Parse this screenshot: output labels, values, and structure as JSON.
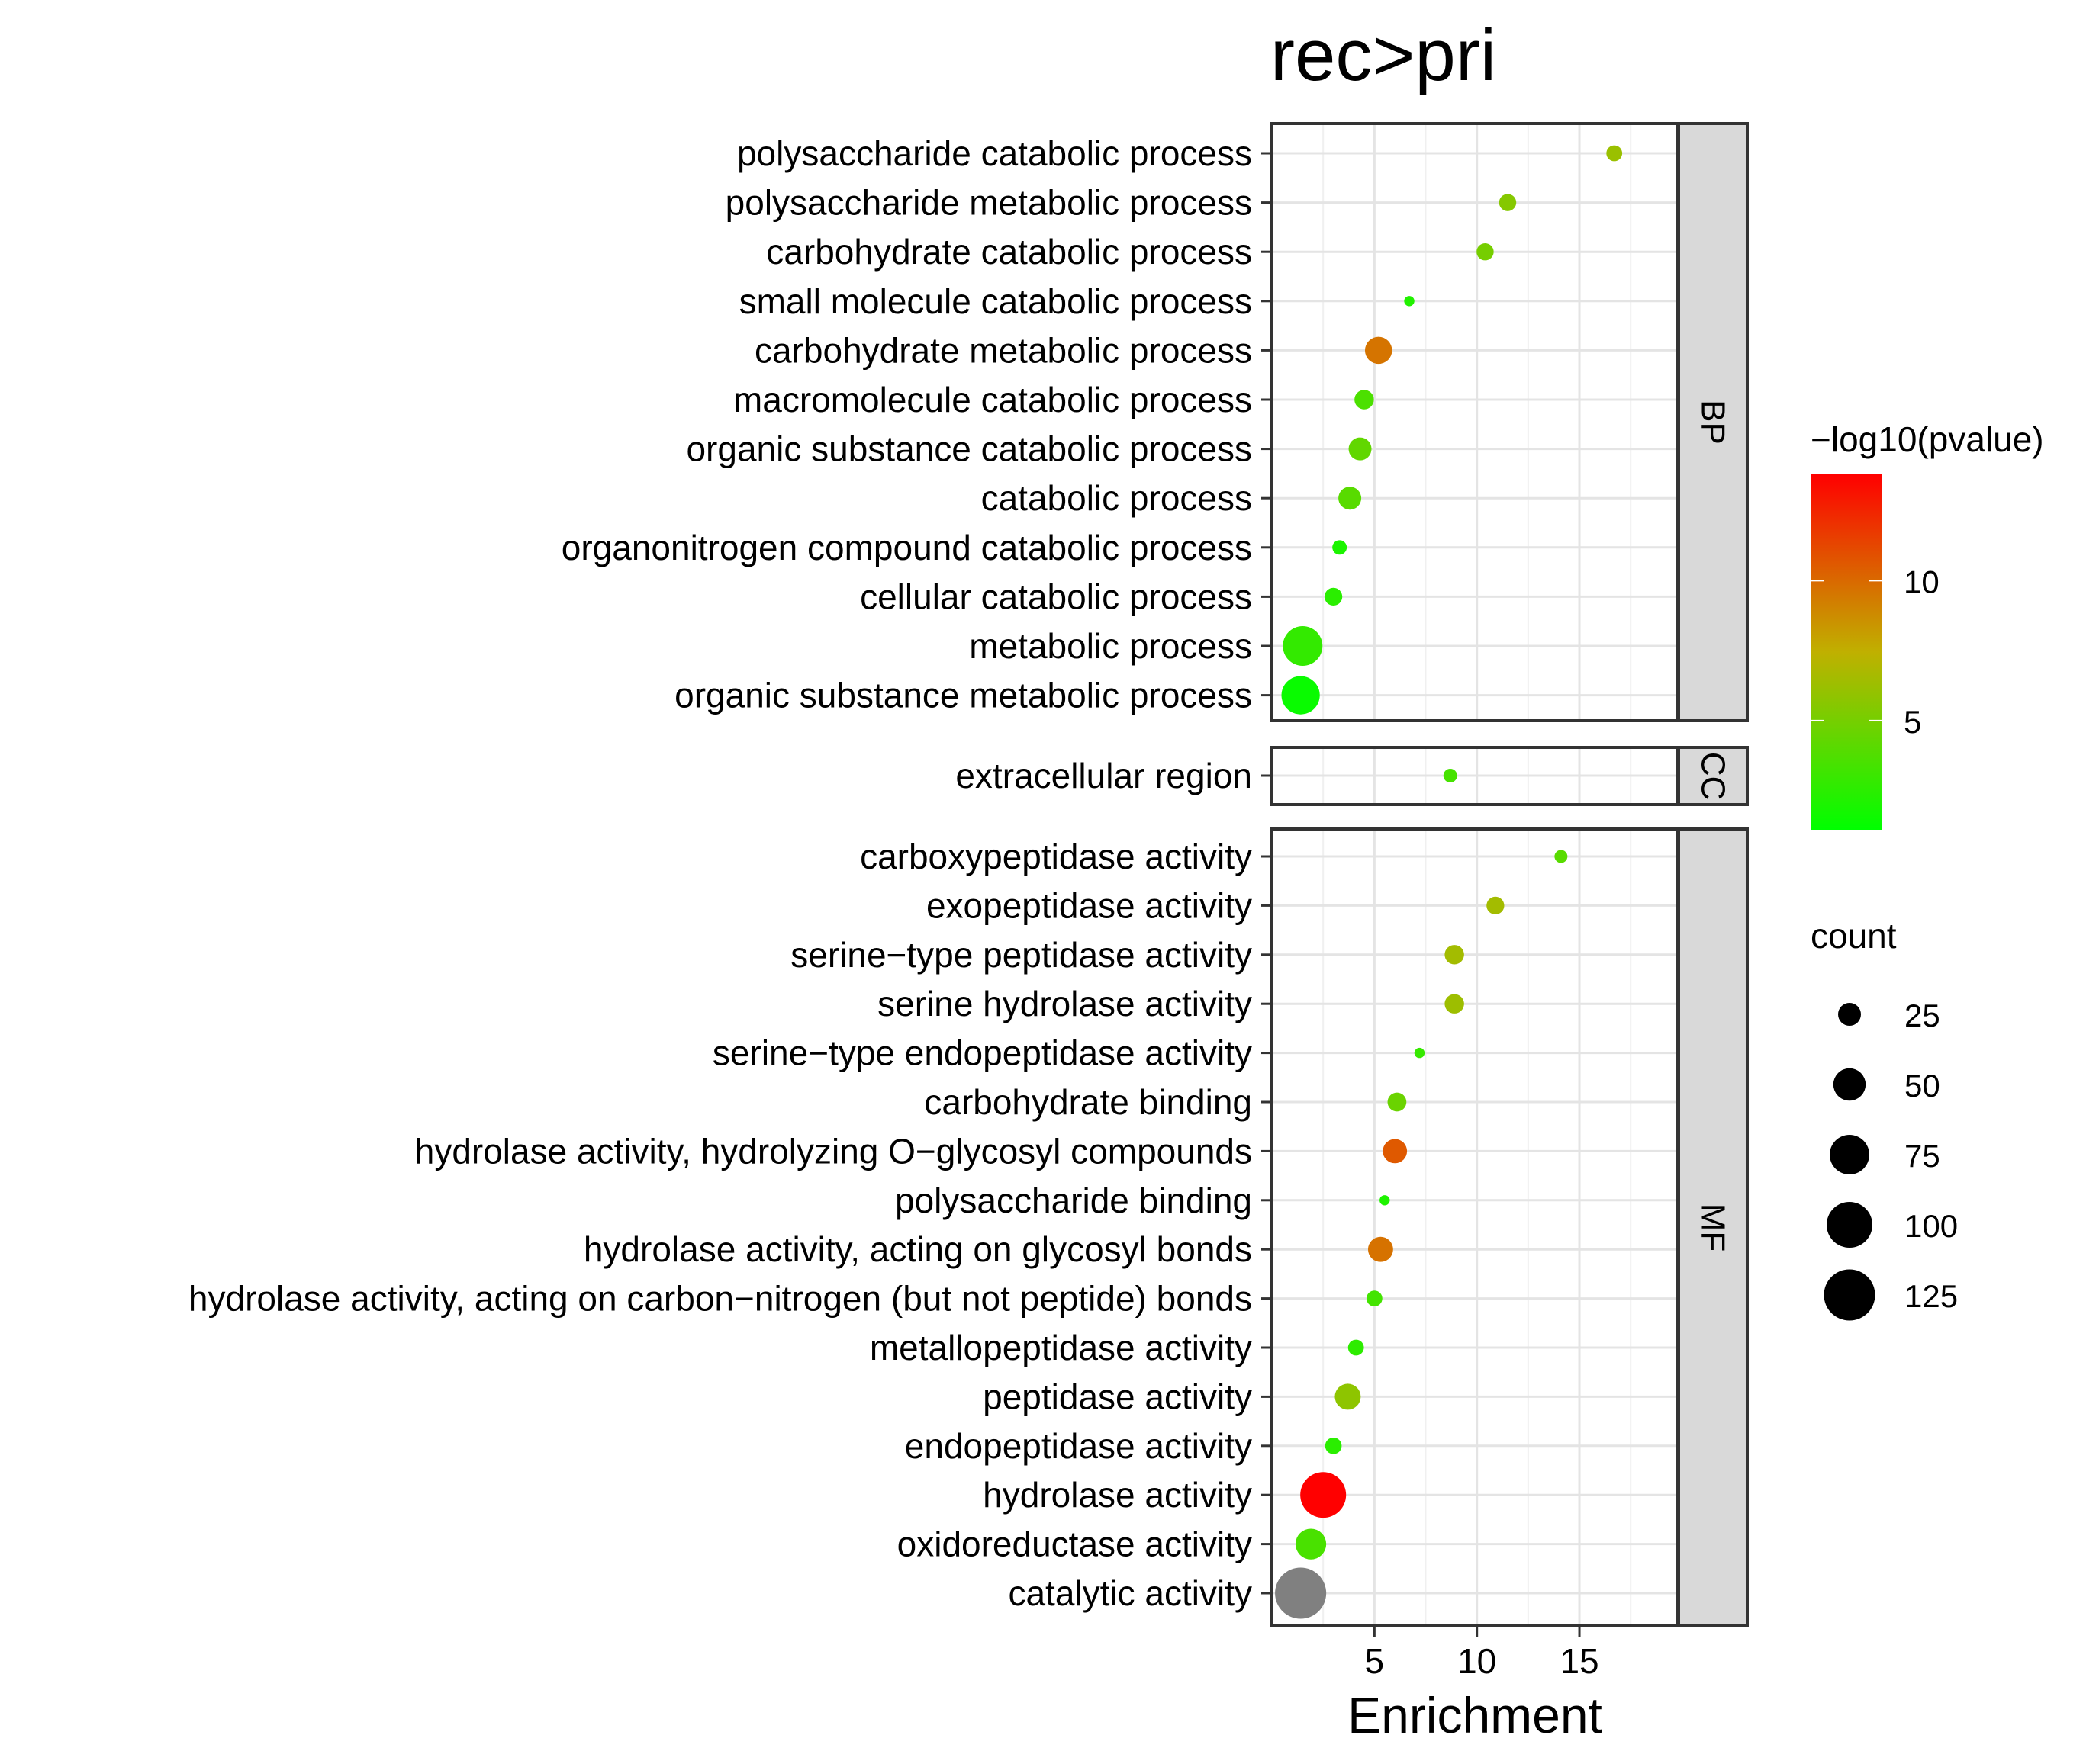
{
  "chart_data": {
    "type": "scatter",
    "title": "rec>pri",
    "xlabel": "Enrichment",
    "ylabel": "",
    "xlim": [
      0,
      19.8
    ],
    "xticks": [
      "5",
      "10",
      "15"
    ],
    "x_tick_values": [
      5,
      10,
      15
    ],
    "grid": true,
    "color_legend": {
      "title": "−log10(pvalue)",
      "ticks": [
        "5",
        "10"
      ],
      "tick_values": [
        5,
        10
      ],
      "range": [
        1.1,
        13.8
      ],
      "low_color": "#00ff00",
      "mid_color": "#c0b000",
      "high_color": "#ff0000",
      "na_color": "#808080",
      "position": "right"
    },
    "size_legend": {
      "title": "count",
      "values": [
        25,
        50,
        75,
        100,
        125
      ],
      "labels": [
        "25",
        "50",
        "75",
        "100",
        "125"
      ],
      "position": "right"
    },
    "facets": [
      {
        "label": "BP",
        "points": [
          {
            "term": "polysaccharide catabolic process",
            "enrichment": 16.7,
            "neglog10p": 6.2,
            "count": 12
          },
          {
            "term": "polysaccharide metabolic process",
            "enrichment": 11.5,
            "neglog10p": 5.5,
            "count": 14
          },
          {
            "term": "carbohydrate catabolic process",
            "enrichment": 10.4,
            "neglog10p": 5.0,
            "count": 14
          },
          {
            "term": "small molecule catabolic process",
            "enrichment": 6.7,
            "neglog10p": 2.2,
            "count": 5
          },
          {
            "term": "carbohydrate metabolic process",
            "enrichment": 5.2,
            "neglog10p": 9.6,
            "count": 35
          },
          {
            "term": "macromolecule catabolic process",
            "enrichment": 4.5,
            "neglog10p": 3.6,
            "count": 18
          },
          {
            "term": "organic substance catabolic process",
            "enrichment": 4.3,
            "neglog10p": 4.3,
            "count": 25
          },
          {
            "term": "catabolic process",
            "enrichment": 3.8,
            "neglog10p": 4.0,
            "count": 25
          },
          {
            "term": "organonitrogen compound catabolic process",
            "enrichment": 3.3,
            "neglog10p": 2.0,
            "count": 10
          },
          {
            "term": "cellular catabolic process",
            "enrichment": 3.0,
            "neglog10p": 2.5,
            "count": 15
          },
          {
            "term": "metabolic process",
            "enrichment": 1.5,
            "neglog10p": 2.8,
            "count": 75
          },
          {
            "term": "organic substance metabolic process",
            "enrichment": 1.4,
            "neglog10p": 1.4,
            "count": 70
          }
        ]
      },
      {
        "label": "CC",
        "points": [
          {
            "term": "extracellular region",
            "enrichment": 8.7,
            "neglog10p": 3.4,
            "count": 9
          }
        ]
      },
      {
        "label": "MF",
        "points": [
          {
            "term": "carboxypeptidase activity",
            "enrichment": 14.1,
            "neglog10p": 4.0,
            "count": 8
          },
          {
            "term": "exopeptidase activity",
            "enrichment": 10.9,
            "neglog10p": 6.5,
            "count": 15
          },
          {
            "term": "serine−type peptidase activity",
            "enrichment": 8.9,
            "neglog10p": 6.5,
            "count": 18
          },
          {
            "term": "serine hydrolase activity",
            "enrichment": 8.9,
            "neglog10p": 6.3,
            "count": 18
          },
          {
            "term": "serine−type endopeptidase activity",
            "enrichment": 7.2,
            "neglog10p": 2.9,
            "count": 5
          },
          {
            "term": "carbohydrate binding",
            "enrichment": 6.1,
            "neglog10p": 4.6,
            "count": 17
          },
          {
            "term": "hydrolase activity, hydrolyzing O−glycosyl compounds",
            "enrichment": 6.0,
            "neglog10p": 10.6,
            "count": 28
          },
          {
            "term": "polysaccharide binding",
            "enrichment": 5.5,
            "neglog10p": 2.1,
            "count": 5
          },
          {
            "term": "hydrolase activity, acting on glycosyl bonds",
            "enrichment": 5.3,
            "neglog10p": 9.7,
            "count": 30
          },
          {
            "term": "hydrolase activity, acting on carbon−nitrogen (but not peptide) bonds",
            "enrichment": 5.0,
            "neglog10p": 3.3,
            "count": 12
          },
          {
            "term": "metallopeptidase activity",
            "enrichment": 4.1,
            "neglog10p": 2.6,
            "count": 12
          },
          {
            "term": "peptidase activity",
            "enrichment": 3.7,
            "neglog10p": 5.8,
            "count": 32
          },
          {
            "term": "endopeptidase activity",
            "enrichment": 3.0,
            "neglog10p": 2.5,
            "count": 13
          },
          {
            "term": "hydrolase activity",
            "enrichment": 2.5,
            "neglog10p": 13.8,
            "count": 100
          },
          {
            "term": "oxidoreductase activity",
            "enrichment": 1.9,
            "neglog10p": 3.5,
            "count": 45
          },
          {
            "term": "catalytic activity",
            "enrichment": 1.4,
            "neglog10p": null,
            "count": 125
          }
        ]
      }
    ]
  }
}
